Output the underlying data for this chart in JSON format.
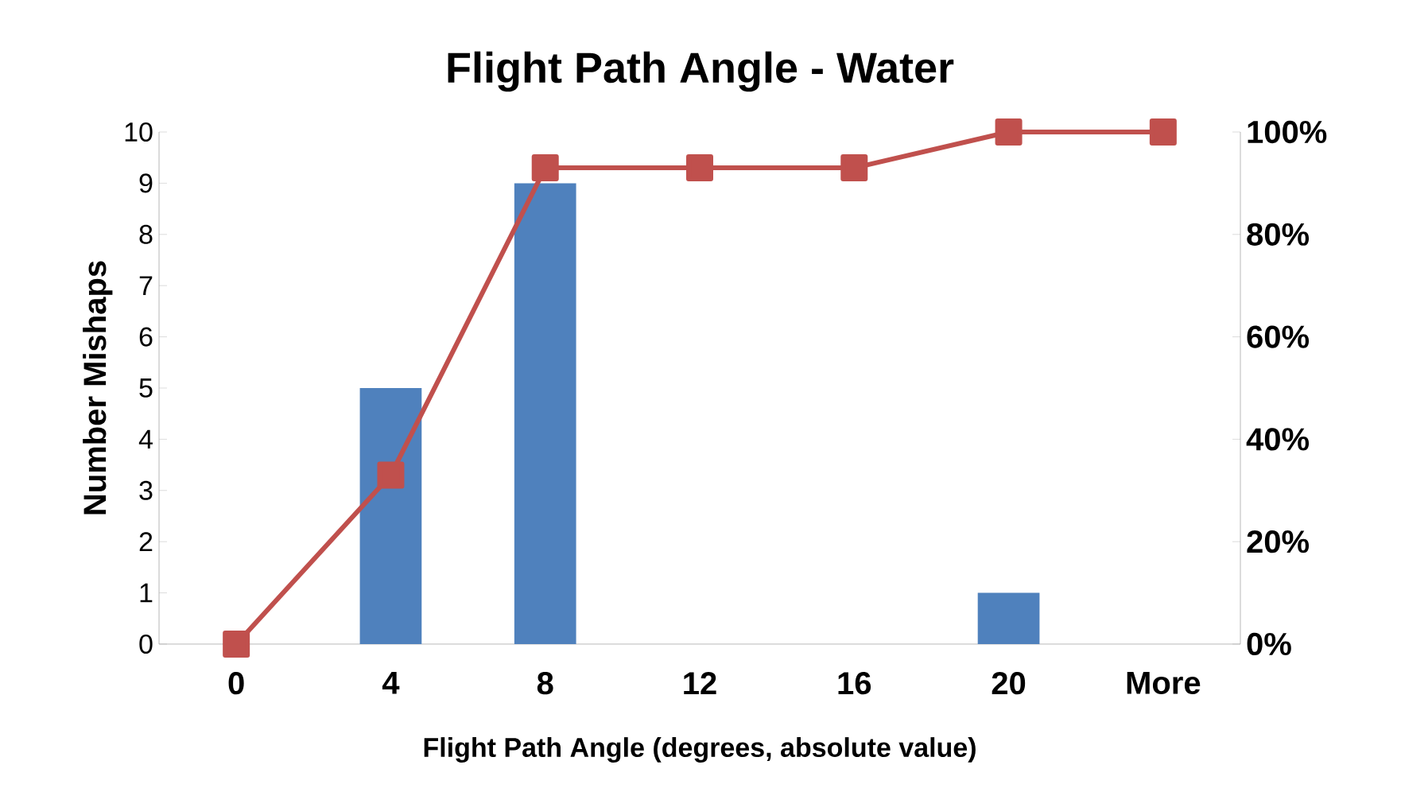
{
  "chart_data": {
    "type": "bar",
    "title": "Flight Path Angle - Water",
    "xlabel": "Flight Path Angle (degrees, absolute value)",
    "ylabel": "Number Mishaps",
    "categories": [
      "0",
      "4",
      "8",
      "12",
      "16",
      "20",
      "More"
    ],
    "ylim": [
      0,
      10
    ],
    "yticks": [
      0,
      1,
      2,
      3,
      4,
      5,
      6,
      7,
      8,
      9,
      10
    ],
    "y2lim": [
      0,
      100
    ],
    "y2ticks": [
      {
        "value": 0,
        "label": "0%"
      },
      {
        "value": 20,
        "label": "20%"
      },
      {
        "value": 40,
        "label": "40%"
      },
      {
        "value": 60,
        "label": "60%"
      },
      {
        "value": 80,
        "label": "80%"
      },
      {
        "value": 100,
        "label": "100%"
      }
    ],
    "grid": false,
    "series": [
      {
        "color": "#4f81bd",
        "values": [
          0,
          5,
          9,
          0,
          0,
          1,
          0
        ]
      },
      {
        "type": "line",
        "axis": "y2",
        "color": "#c0504d",
        "marker": "square",
        "values": [
          0,
          33,
          93,
          93,
          93,
          100,
          100
        ]
      }
    ]
  }
}
